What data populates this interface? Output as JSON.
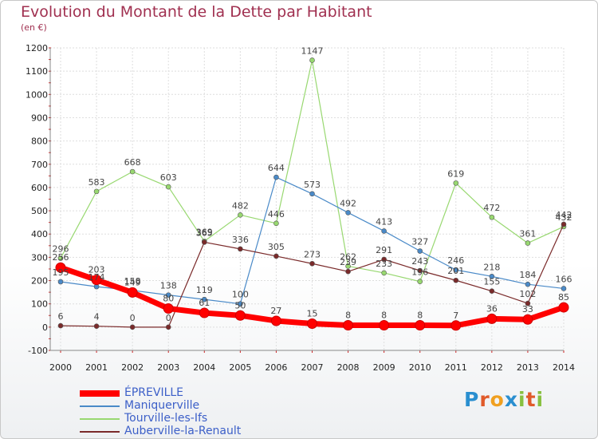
{
  "title": "Evolution du Montant de la Dette par Habitant",
  "subtitle": "(en €)",
  "logo": {
    "letters": [
      "P",
      "r",
      "o",
      "x",
      "i",
      "t",
      "i"
    ],
    "colors": [
      "#2a8fd0",
      "#e05a2a",
      "#f0a020",
      "#2a8fd0",
      "#88c040",
      "#e05a2a",
      "#88c040"
    ]
  },
  "chart_data": {
    "type": "line",
    "title": "Evolution du Montant de la Dette par Habitant",
    "ylabel": "(en €)",
    "xlabel": "",
    "x": [
      "2000",
      "2001",
      "2002",
      "2003",
      "2004",
      "2005",
      "2006",
      "2007",
      "2008",
      "2009",
      "2010",
      "2011",
      "2012",
      "2013",
      "2014"
    ],
    "ylim": [
      -100,
      1200
    ],
    "yticks": [
      "-100",
      "0",
      "100",
      "200",
      "300",
      "400",
      "500",
      "600",
      "700",
      "800",
      "900",
      "1000",
      "1100",
      "1200"
    ],
    "grid": true,
    "legend_position": "bottom-left",
    "series": [
      {
        "name": "ÉPREVILLE",
        "color": "#ff0000",
        "values": [
          256,
          203,
          149,
          80,
          61,
          50,
          27,
          15,
          8,
          8,
          8,
          7,
          36,
          33,
          85
        ],
        "labels": [
          "256",
          "203",
          "149",
          "80",
          "61",
          "50",
          "27",
          "15",
          "8",
          "8",
          "8",
          "7",
          "36",
          "33",
          "85"
        ]
      },
      {
        "name": "Maniquerville",
        "color": "#4a8ac8",
        "values": [
          195,
          174,
          158,
          138,
          119,
          100,
          644,
          573,
          492,
          413,
          327,
          246,
          218,
          184,
          166
        ],
        "labels": [
          "195",
          "174",
          "158",
          "138",
          "119",
          "100",
          "644",
          "573",
          "492",
          "413",
          "327",
          "246",
          "218",
          "184",
          "166"
        ]
      },
      {
        "name": "Tourville-les-Ifs",
        "color": "#98d870",
        "values": [
          296,
          583,
          668,
          603,
          369,
          482,
          446,
          1147,
          262,
          233,
          196,
          619,
          472,
          361,
          432
        ],
        "labels": [
          "296",
          "583",
          "668",
          "603",
          "369",
          "482",
          "446",
          "1147",
          "262",
          "233",
          "196",
          "619",
          "472",
          "361",
          "432"
        ]
      },
      {
        "name": "Auberville-la-Renault",
        "color": "#7a2a2a",
        "values": [
          6,
          4,
          0,
          0,
          365,
          336,
          305,
          273,
          239,
          291,
          243,
          201,
          155,
          102,
          442
        ],
        "labels": [
          "6",
          "4",
          "0",
          "0",
          "365",
          "336",
          "305",
          "273",
          "239",
          "291",
          "243",
          "201",
          "155",
          "102",
          "442"
        ]
      }
    ]
  }
}
